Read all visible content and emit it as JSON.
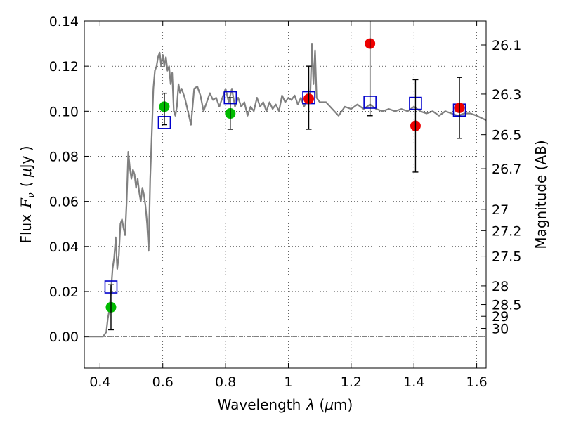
{
  "chart_data": {
    "type": "scatter",
    "xlim": [
      0.35,
      1.63
    ],
    "ylim": [
      -0.014,
      0.14
    ],
    "x_ticks": [
      0.4,
      0.6,
      0.8,
      1.0,
      1.2,
      1.4,
      1.6
    ],
    "x_tick_labels": [
      "0.4",
      "0.6",
      "0.8",
      "1",
      "1.2",
      "1.4",
      "1.6"
    ],
    "y_ticks": [
      0.0,
      0.02,
      0.04,
      0.06,
      0.08,
      0.1,
      0.12,
      0.14
    ],
    "y_tick_labels": [
      "0.00",
      "0.02",
      "0.04",
      "0.06",
      "0.08",
      "0.10",
      "0.12",
      "0.14"
    ],
    "right_axis": {
      "label": "Magnitude (AB)",
      "ticks": [
        {
          "label": "26.1",
          "flux": 0.1294
        },
        {
          "label": "26.3",
          "flux": 0.1076
        },
        {
          "label": "26.5",
          "flux": 0.0896
        },
        {
          "label": "26.7",
          "flux": 0.0745
        },
        {
          "label": "27",
          "flux": 0.0565
        },
        {
          "label": "27.2",
          "flux": 0.047
        },
        {
          "label": "27.5",
          "flux": 0.0357
        },
        {
          "label": "28",
          "flux": 0.0225
        },
        {
          "label": "28.5",
          "flux": 0.0142
        },
        {
          "label": "29",
          "flux": 0.009
        },
        {
          "label": "30",
          "flux": 0.0036
        }
      ]
    },
    "xlabel_prefix": "Wavelength",
    "xlabel_symbol": "λ",
    "xlabel_unit_open": " (",
    "xlabel_unit_mu": "μ",
    "xlabel_unit_rest": "m)",
    "ylabel_prefix": "Flux",
    "ylabel_symbol": "F",
    "ylabel_sub": "ν",
    "ylabel_unit_open": "( ",
    "ylabel_unit_mu": "μ",
    "ylabel_unit_rest": "Jy )",
    "grid": true,
    "series": [
      {
        "kind": "line",
        "color": "#808080",
        "x": [
          0.35,
          0.38,
          0.41,
          0.42,
          0.425,
          0.43,
          0.435,
          0.44,
          0.445,
          0.45,
          0.455,
          0.46,
          0.465,
          0.47,
          0.475,
          0.48,
          0.485,
          0.49,
          0.495,
          0.5,
          0.505,
          0.51,
          0.515,
          0.52,
          0.525,
          0.53,
          0.535,
          0.54,
          0.545,
          0.55,
          0.555,
          0.56,
          0.565,
          0.57,
          0.575,
          0.58,
          0.585,
          0.59,
          0.595,
          0.6,
          0.605,
          0.61,
          0.615,
          0.62,
          0.625,
          0.63,
          0.635,
          0.64,
          0.645,
          0.65,
          0.655,
          0.66,
          0.67,
          0.68,
          0.69,
          0.7,
          0.71,
          0.72,
          0.73,
          0.74,
          0.75,
          0.76,
          0.77,
          0.78,
          0.79,
          0.8,
          0.81,
          0.82,
          0.83,
          0.84,
          0.85,
          0.86,
          0.87,
          0.88,
          0.89,
          0.9,
          0.91,
          0.92,
          0.93,
          0.94,
          0.95,
          0.96,
          0.97,
          0.98,
          0.99,
          1.0,
          1.01,
          1.02,
          1.03,
          1.04,
          1.05,
          1.06,
          1.07,
          1.075,
          1.08,
          1.085,
          1.09,
          1.1,
          1.12,
          1.14,
          1.16,
          1.18,
          1.2,
          1.22,
          1.24,
          1.26,
          1.28,
          1.3,
          1.32,
          1.34,
          1.36,
          1.38,
          1.4,
          1.42,
          1.44,
          1.46,
          1.48,
          1.5,
          1.52,
          1.54,
          1.56,
          1.58,
          1.6,
          1.63
        ],
        "y": [
          0.0,
          0.0,
          0.0,
          0.002,
          0.008,
          0.012,
          0.02,
          0.03,
          0.035,
          0.044,
          0.03,
          0.036,
          0.05,
          0.052,
          0.048,
          0.045,
          0.06,
          0.082,
          0.075,
          0.07,
          0.074,
          0.072,
          0.066,
          0.07,
          0.064,
          0.06,
          0.066,
          0.063,
          0.058,
          0.05,
          0.038,
          0.07,
          0.09,
          0.11,
          0.118,
          0.12,
          0.124,
          0.126,
          0.12,
          0.125,
          0.12,
          0.124,
          0.118,
          0.12,
          0.112,
          0.117,
          0.1,
          0.098,
          0.102,
          0.112,
          0.108,
          0.11,
          0.106,
          0.1,
          0.094,
          0.11,
          0.111,
          0.107,
          0.1,
          0.104,
          0.108,
          0.105,
          0.106,
          0.102,
          0.106,
          0.11,
          0.104,
          0.11,
          0.102,
          0.106,
          0.102,
          0.104,
          0.098,
          0.102,
          0.1,
          0.106,
          0.102,
          0.104,
          0.1,
          0.104,
          0.101,
          0.103,
          0.1,
          0.107,
          0.104,
          0.106,
          0.105,
          0.107,
          0.103,
          0.106,
          0.102,
          0.105,
          0.108,
          0.13,
          0.112,
          0.127,
          0.106,
          0.104,
          0.104,
          0.101,
          0.098,
          0.102,
          0.101,
          0.103,
          0.101,
          0.103,
          0.101,
          0.1,
          0.101,
          0.1,
          0.101,
          0.1,
          0.102,
          0.1,
          0.099,
          0.1,
          0.098,
          0.1,
          0.099,
          0.098,
          0.099,
          0.099,
          0.098,
          0.096
        ]
      },
      {
        "kind": "open-square",
        "color": "#0000cc",
        "x": [
          0.435,
          0.605,
          0.815,
          1.065,
          1.26,
          1.405,
          1.545
        ],
        "y": [
          0.022,
          0.095,
          0.106,
          0.106,
          0.104,
          0.1035,
          0.1005
        ]
      },
      {
        "kind": "filled-circle",
        "color": "#00bb00",
        "x": [
          0.435,
          0.605,
          0.815
        ],
        "y": [
          0.013,
          0.102,
          0.099
        ]
      },
      {
        "kind": "filled-circle",
        "color": "#ee0000",
        "x": [
          1.065,
          1.26,
          1.405,
          1.545
        ],
        "y": [
          0.1055,
          0.13,
          0.0935,
          0.1015
        ]
      },
      {
        "kind": "errorbar",
        "color": "#000000",
        "x": [
          0.435,
          0.605,
          0.815,
          1.065,
          1.26,
          1.405,
          1.545
        ],
        "ylow": [
          0.003,
          0.094,
          0.092,
          0.092,
          0.098,
          0.073,
          0.088
        ],
        "yhigh": [
          0.023,
          0.108,
          0.106,
          0.12,
          0.145,
          0.114,
          0.115
        ]
      }
    ]
  }
}
